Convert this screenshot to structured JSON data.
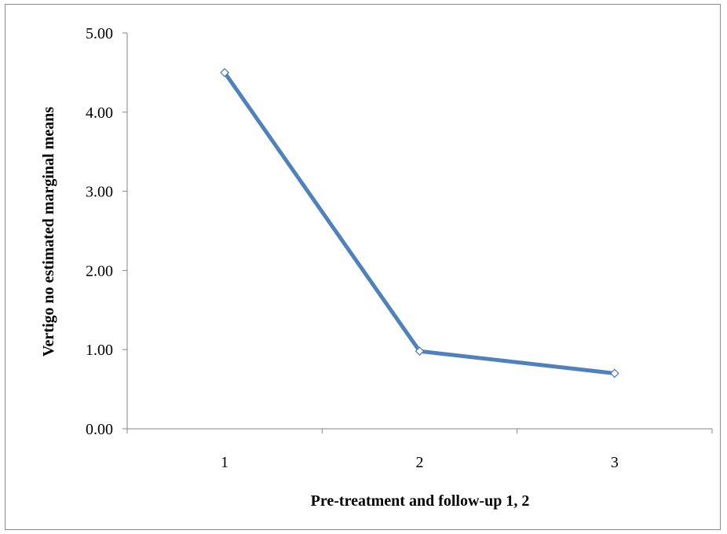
{
  "chart_data": {
    "type": "line",
    "title": "",
    "xlabel": "Pre-treatment and follow-up 1, 2",
    "ylabel": "Vertigo no estimated marginal means",
    "categories": [
      "1",
      "2",
      "3"
    ],
    "series": [
      {
        "values": [
          4.5,
          0.98,
          0.7
        ],
        "color": "#4f81bd"
      }
    ],
    "ylim": [
      0,
      5
    ],
    "yticks": [
      "0.00",
      "1.00",
      "2.00",
      "3.00",
      "4.00",
      "5.00"
    ],
    "grid": false,
    "legend": "none",
    "marker": "diamond"
  }
}
